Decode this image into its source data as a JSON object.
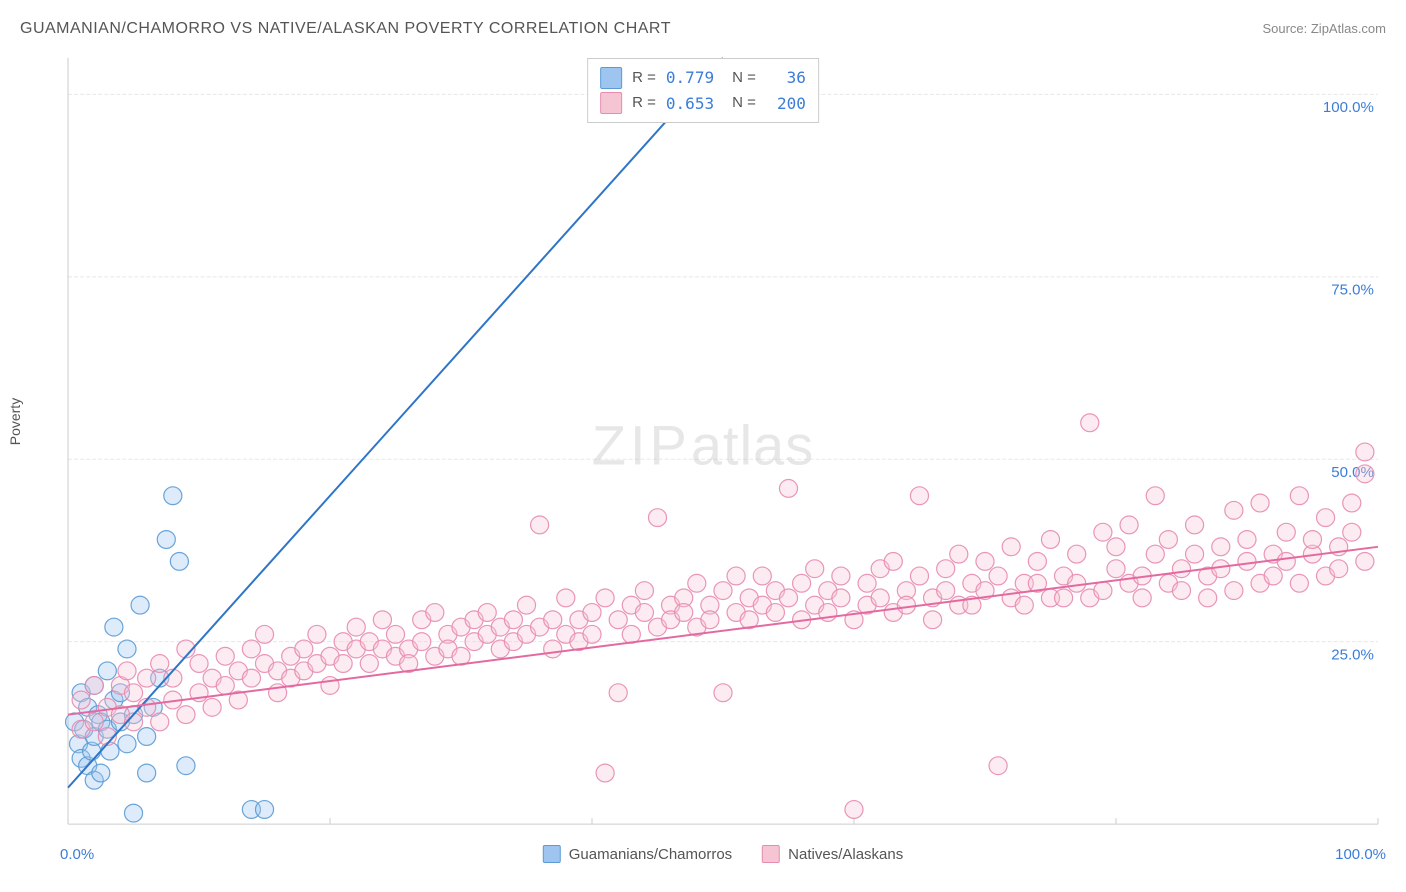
{
  "title": "GUAMANIAN/CHAMORRO VS NATIVE/ALASKAN POVERTY CORRELATION CHART",
  "source_prefix": "Source: ",
  "source_name": "ZipAtlas.com",
  "ylabel": "Poverty",
  "watermark_a": "ZIP",
  "watermark_b": "atlas",
  "chart": {
    "type": "scatter",
    "background_color": "#ffffff",
    "grid_color": "#e8e8e8",
    "axis_color": "#cccccc",
    "tick_label_color": "#3b7dd8",
    "tick_fontsize": 15,
    "xlim": [
      0,
      100
    ],
    "ylim": [
      0,
      105
    ],
    "y_ticks": [
      0,
      25,
      50,
      75,
      100
    ],
    "y_tick_labels": [
      "",
      "25.0%",
      "50.0%",
      "75.0%",
      "100.0%"
    ],
    "x_ticks": [
      0,
      20,
      40,
      60,
      80,
      100
    ],
    "x_tick_labels_visible": [
      "0.0%",
      "",
      "",
      "",
      "",
      "100.0%"
    ],
    "marker_radius": 9,
    "marker_fill_opacity": 0.35,
    "marker_stroke_opacity": 0.9,
    "marker_stroke_width": 1.2,
    "regression_line_width": 2
  },
  "series": [
    {
      "name": "Guamanians/Chamorros",
      "color": "#9ec5f0",
      "stroke": "#5b9bd5",
      "line_color": "#2e75c8",
      "R": "0.779",
      "N": "36",
      "regression": {
        "x1": 0,
        "y1": 5,
        "x2": 50,
        "y2": 105
      },
      "points": [
        [
          0.5,
          14
        ],
        [
          0.8,
          11
        ],
        [
          1,
          18
        ],
        [
          1,
          9
        ],
        [
          1.2,
          13
        ],
        [
          1.5,
          8
        ],
        [
          1.5,
          16
        ],
        [
          1.8,
          10
        ],
        [
          2,
          12
        ],
        [
          2,
          19
        ],
        [
          2,
          6
        ],
        [
          2.3,
          15
        ],
        [
          2.5,
          14
        ],
        [
          2.5,
          7
        ],
        [
          3,
          21
        ],
        [
          3,
          13
        ],
        [
          3.2,
          10
        ],
        [
          3.5,
          17
        ],
        [
          3.5,
          27
        ],
        [
          4,
          14
        ],
        [
          4,
          18
        ],
        [
          4.5,
          11
        ],
        [
          4.5,
          24
        ],
        [
          5,
          15
        ],
        [
          5,
          1.5
        ],
        [
          5.5,
          30
        ],
        [
          6,
          12
        ],
        [
          6,
          7
        ],
        [
          6.5,
          16
        ],
        [
          7,
          20
        ],
        [
          7.5,
          39
        ],
        [
          8,
          45
        ],
        [
          8.5,
          36
        ],
        [
          9,
          8
        ],
        [
          14,
          2
        ],
        [
          15,
          2
        ]
      ]
    },
    {
      "name": "Natives/Alaskans",
      "color": "#f6c5d3",
      "stroke": "#e78bb0",
      "line_color": "#e36aa0",
      "R": "0.653",
      "N": "200",
      "regression": {
        "x1": 0,
        "y1": 15,
        "x2": 100,
        "y2": 38
      },
      "points": [
        [
          1,
          13
        ],
        [
          1,
          17
        ],
        [
          2,
          14
        ],
        [
          2,
          19
        ],
        [
          3,
          16
        ],
        [
          3,
          12
        ],
        [
          4,
          15
        ],
        [
          4,
          19
        ],
        [
          4.5,
          21
        ],
        [
          5,
          14
        ],
        [
          5,
          18
        ],
        [
          6,
          16
        ],
        [
          6,
          20
        ],
        [
          7,
          14
        ],
        [
          7,
          22
        ],
        [
          8,
          17
        ],
        [
          8,
          20
        ],
        [
          9,
          15
        ],
        [
          9,
          24
        ],
        [
          10,
          18
        ],
        [
          10,
          22
        ],
        [
          11,
          20
        ],
        [
          11,
          16
        ],
        [
          12,
          23
        ],
        [
          12,
          19
        ],
        [
          13,
          21
        ],
        [
          13,
          17
        ],
        [
          14,
          24
        ],
        [
          14,
          20
        ],
        [
          15,
          22
        ],
        [
          15,
          26
        ],
        [
          16,
          21
        ],
        [
          16,
          18
        ],
        [
          17,
          23
        ],
        [
          17,
          20
        ],
        [
          18,
          24
        ],
        [
          18,
          21
        ],
        [
          19,
          22
        ],
        [
          19,
          26
        ],
        [
          20,
          23
        ],
        [
          20,
          19
        ],
        [
          21,
          25
        ],
        [
          21,
          22
        ],
        [
          22,
          24
        ],
        [
          22,
          27
        ],
        [
          23,
          22
        ],
        [
          23,
          25
        ],
        [
          24,
          24
        ],
        [
          24,
          28
        ],
        [
          25,
          23
        ],
        [
          25,
          26
        ],
        [
          26,
          24
        ],
        [
          26,
          22
        ],
        [
          27,
          28
        ],
        [
          27,
          25
        ],
        [
          28,
          23
        ],
        [
          28,
          29
        ],
        [
          29,
          26
        ],
        [
          29,
          24
        ],
        [
          30,
          27
        ],
        [
          30,
          23
        ],
        [
          31,
          28
        ],
        [
          31,
          25
        ],
        [
          32,
          26
        ],
        [
          32,
          29
        ],
        [
          33,
          24
        ],
        [
          33,
          27
        ],
        [
          34,
          28
        ],
        [
          34,
          25
        ],
        [
          35,
          26
        ],
        [
          35,
          30
        ],
        [
          36,
          27
        ],
        [
          36,
          41
        ],
        [
          37,
          28
        ],
        [
          37,
          24
        ],
        [
          38,
          26
        ],
        [
          38,
          31
        ],
        [
          39,
          28
        ],
        [
          39,
          25
        ],
        [
          40,
          29
        ],
        [
          40,
          26
        ],
        [
          41,
          31
        ],
        [
          41,
          7
        ],
        [
          42,
          18
        ],
        [
          42,
          28
        ],
        [
          43,
          30
        ],
        [
          43,
          26
        ],
        [
          44,
          29
        ],
        [
          44,
          32
        ],
        [
          45,
          27
        ],
        [
          45,
          42
        ],
        [
          46,
          30
        ],
        [
          46,
          28
        ],
        [
          47,
          31
        ],
        [
          47,
          29
        ],
        [
          48,
          27
        ],
        [
          48,
          33
        ],
        [
          49,
          30
        ],
        [
          49,
          28
        ],
        [
          50,
          32
        ],
        [
          50,
          18
        ],
        [
          51,
          29
        ],
        [
          51,
          34
        ],
        [
          52,
          31
        ],
        [
          52,
          28
        ],
        [
          53,
          30
        ],
        [
          53,
          34
        ],
        [
          54,
          32
        ],
        [
          54,
          29
        ],
        [
          55,
          46
        ],
        [
          55,
          31
        ],
        [
          56,
          33
        ],
        [
          56,
          28
        ],
        [
          57,
          30
        ],
        [
          57,
          35
        ],
        [
          58,
          32
        ],
        [
          58,
          29
        ],
        [
          59,
          34
        ],
        [
          59,
          31
        ],
        [
          60,
          28
        ],
        [
          60,
          2
        ],
        [
          61,
          33
        ],
        [
          61,
          30
        ],
        [
          62,
          35
        ],
        [
          62,
          31
        ],
        [
          63,
          29
        ],
        [
          63,
          36
        ],
        [
          64,
          32
        ],
        [
          64,
          30
        ],
        [
          65,
          34
        ],
        [
          65,
          45
        ],
        [
          66,
          31
        ],
        [
          66,
          28
        ],
        [
          67,
          35
        ],
        [
          67,
          32
        ],
        [
          68,
          30
        ],
        [
          68,
          37
        ],
        [
          69,
          33
        ],
        [
          69,
          30
        ],
        [
          70,
          36
        ],
        [
          70,
          32
        ],
        [
          71,
          34
        ],
        [
          71,
          8
        ],
        [
          72,
          31
        ],
        [
          72,
          38
        ],
        [
          73,
          33
        ],
        [
          73,
          30
        ],
        [
          74,
          36
        ],
        [
          74,
          33
        ],
        [
          75,
          31
        ],
        [
          75,
          39
        ],
        [
          76,
          34
        ],
        [
          76,
          31
        ],
        [
          77,
          37
        ],
        [
          77,
          33
        ],
        [
          78,
          31
        ],
        [
          78,
          55
        ],
        [
          79,
          40
        ],
        [
          79,
          32
        ],
        [
          80,
          35
        ],
        [
          80,
          38
        ],
        [
          81,
          33
        ],
        [
          81,
          41
        ],
        [
          82,
          34
        ],
        [
          82,
          31
        ],
        [
          83,
          45
        ],
        [
          83,
          37
        ],
        [
          84,
          33
        ],
        [
          84,
          39
        ],
        [
          85,
          35
        ],
        [
          85,
          32
        ],
        [
          86,
          41
        ],
        [
          86,
          37
        ],
        [
          87,
          34
        ],
        [
          87,
          31
        ],
        [
          88,
          38
        ],
        [
          88,
          35
        ],
        [
          89,
          32
        ],
        [
          89,
          43
        ],
        [
          90,
          36
        ],
        [
          90,
          39
        ],
        [
          91,
          33
        ],
        [
          91,
          44
        ],
        [
          92,
          37
        ],
        [
          92,
          34
        ],
        [
          93,
          40
        ],
        [
          93,
          36
        ],
        [
          94,
          33
        ],
        [
          94,
          45
        ],
        [
          95,
          37
        ],
        [
          95,
          39
        ],
        [
          96,
          34
        ],
        [
          96,
          42
        ],
        [
          97,
          38
        ],
        [
          97,
          35
        ],
        [
          98,
          44
        ],
        [
          98,
          40
        ],
        [
          99,
          36
        ],
        [
          99,
          48
        ],
        [
          99,
          51
        ]
      ]
    }
  ],
  "top_legend": {
    "r_label": "R =",
    "n_label": "N ="
  },
  "bottom_legend_items": [
    {
      "label": "Guamanians/Chamorros",
      "series_index": 0
    },
    {
      "label": "Natives/Alaskans",
      "series_index": 1
    }
  ]
}
